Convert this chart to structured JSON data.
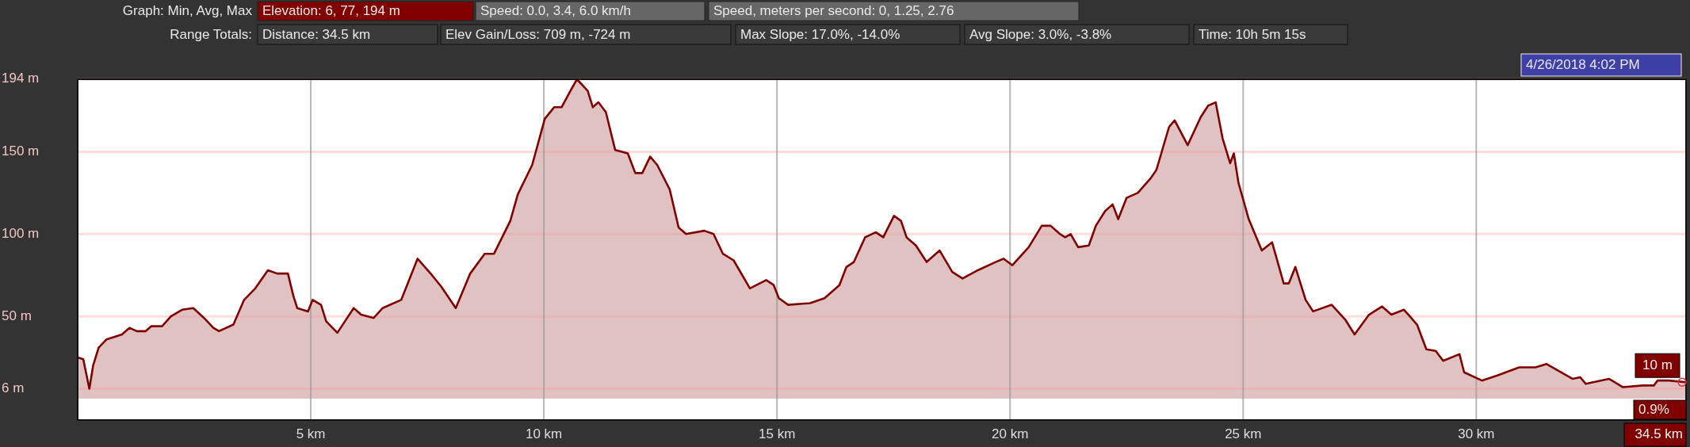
{
  "chart_data": {
    "type": "area",
    "color": "#800000",
    "xlim": [
      0,
      34.5
    ],
    "ylim": [
      -13,
      194
    ],
    "xticks": [
      {
        "value": 5,
        "label": "5 km"
      },
      {
        "value": 10,
        "label": "10 km"
      },
      {
        "value": 15,
        "label": "15 km"
      },
      {
        "value": 20,
        "label": "20 km"
      },
      {
        "value": 25,
        "label": "25 km"
      },
      {
        "value": 30,
        "label": "30 km"
      },
      {
        "value": 34.5,
        "label": "34.5 km"
      }
    ],
    "yticks": [
      {
        "value": 6,
        "label": "6 m"
      },
      {
        "value": 50,
        "label": "50 m"
      },
      {
        "value": 100,
        "label": "100 m"
      },
      {
        "value": 150,
        "label": "150 m"
      },
      {
        "value": 194,
        "label": "194 m"
      }
    ],
    "grid": true,
    "x": [
      0,
      0.12,
      0.25,
      0.33,
      0.45,
      0.62,
      0.95,
      1.11,
      1.27,
      1.46,
      1.58,
      1.81,
      2.0,
      2.24,
      2.48,
      2.71,
      2.91,
      3.03,
      3.34,
      3.57,
      3.81,
      4.08,
      4.28,
      4.51,
      4.63,
      4.71,
      4.94,
      5.04,
      5.22,
      5.33,
      5.57,
      5.92,
      6.08,
      6.35,
      6.54,
      6.94,
      7.29,
      7.6,
      7.8,
      8.11,
      8.42,
      8.73,
      8.93,
      9.28,
      9.44,
      9.75,
      10.02,
      10.22,
      10.38,
      10.59,
      10.71,
      10.94,
      11.05,
      11.17,
      11.33,
      11.53,
      11.8,
      11.96,
      12.11,
      12.28,
      12.43,
      12.7,
      12.89,
      13.05,
      13.44,
      13.64,
      13.84,
      14.07,
      14.42,
      14.77,
      14.93,
      15.04,
      15.24,
      15.71,
      16.02,
      16.34,
      16.49,
      16.65,
      16.89,
      17.12,
      17.28,
      17.51,
      17.66,
      17.78,
      17.98,
      18.21,
      18.49,
      18.76,
      18.98,
      19.31,
      19.69,
      19.86,
      20.05,
      20.4,
      20.68,
      20.87,
      21.07,
      21.18,
      21.3,
      21.46,
      21.69,
      21.84,
      22.04,
      22.2,
      22.32,
      22.5,
      22.74,
      23.02,
      23.14,
      23.41,
      23.53,
      23.81,
      24.09,
      24.25,
      24.41,
      24.56,
      24.72,
      24.8,
      24.9,
      25.12,
      25.4,
      25.62,
      25.87,
      25.98,
      26.12,
      26.34,
      26.5,
      26.9,
      27.19,
      27.39,
      27.7,
      27.98,
      28.18,
      28.45,
      28.73,
      28.93,
      29.13,
      29.29,
      29.64,
      29.74,
      30.12,
      30.44,
      30.92,
      31.27,
      31.51,
      32.07,
      32.23,
      32.35,
      32.85,
      33.14,
      33.57,
      33.81,
      33.89,
      34.13,
      34.5
    ],
    "values": [
      25,
      24,
      6,
      20,
      31,
      36,
      39,
      43,
      41,
      41,
      44,
      44,
      50,
      54,
      55,
      49,
      43,
      41,
      45,
      60,
      67,
      78,
      76,
      76,
      62,
      55,
      53,
      60,
      57,
      47,
      40,
      55,
      51,
      49,
      55,
      60,
      85,
      75,
      68,
      55,
      76,
      88,
      88,
      108,
      124,
      142,
      170,
      177,
      177,
      188,
      194,
      187,
      177,
      180,
      174,
      151,
      149,
      137,
      137,
      147,
      142,
      127,
      104,
      100,
      102,
      100,
      88,
      84,
      67,
      72,
      69,
      61,
      57,
      58,
      61,
      69,
      80,
      83,
      98,
      101,
      98,
      111,
      108,
      98,
      93,
      83,
      90,
      77,
      73,
      78,
      83,
      85,
      81,
      92,
      105,
      105,
      100,
      98,
      100,
      92,
      93,
      105,
      114,
      118,
      109,
      122,
      125,
      134,
      139,
      165,
      169,
      154,
      171,
      178,
      180,
      158,
      143,
      149,
      131,
      109,
      90,
      95,
      70,
      70,
      80,
      60,
      53,
      57,
      48,
      39,
      51,
      56,
      51,
      54,
      45,
      30,
      29,
      23,
      27,
      16,
      11,
      14,
      19,
      19,
      21,
      12,
      13,
      9,
      12,
      7,
      8,
      8,
      11,
      11,
      10
    ],
    "annotations": [
      "Graph: Min, Avg, Max",
      "Elevation: 6, 77, 194 m",
      "Speed: 0.0, 3.4, 6.0 km/h",
      "Speed, meters per second: 0, 1.25, 2.76",
      "Range Totals:",
      "Distance: 34.5 km",
      "Elev Gain/Loss: 709 m, -724 m",
      "Max Slope: 17.0%, -14.0%",
      "Avg Slope: 3.0%, -3.8%",
      "Time: 10h 5m 15s",
      "4/26/2018 4:02 PM",
      {
        "text": "10 m",
        "x": 34.5,
        "y": 10
      },
      "0.9%"
    ]
  }
}
